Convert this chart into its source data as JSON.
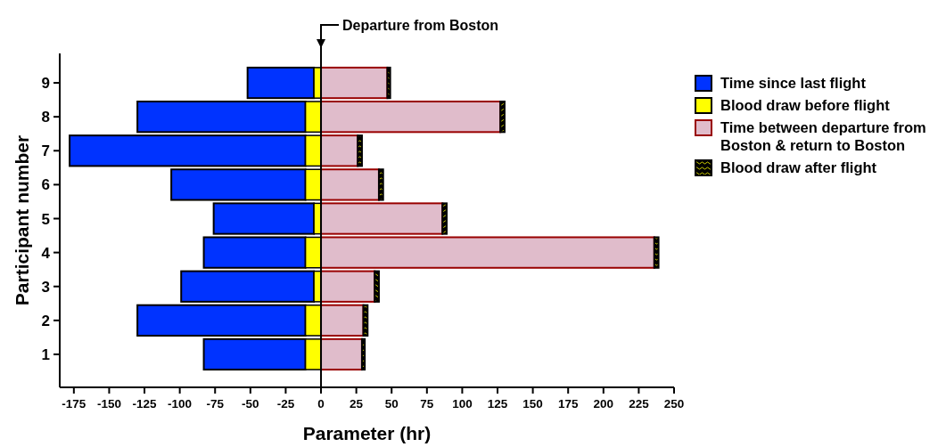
{
  "chart_data": {
    "type": "bar",
    "orientation": "horizontal",
    "xlabel": "Parameter (hr)",
    "ylabel": "Participant number",
    "categories": [
      "9",
      "8",
      "7",
      "6",
      "5",
      "4",
      "3",
      "2",
      "1"
    ],
    "series": [
      {
        "name": "Time since last flight",
        "color": "#0033ff",
        "base": [
          -52,
          -130,
          -178,
          -106,
          -76,
          -83,
          -99,
          -130,
          -83
        ],
        "values": [
          47,
          119,
          167,
          95,
          71,
          72,
          94,
          119,
          72
        ]
      },
      {
        "name": "Blood draw before flight",
        "color": "#ffff00",
        "base": [
          -5,
          -11,
          -11,
          -11,
          -5,
          -11,
          -5,
          -11,
          -11
        ],
        "values": [
          5,
          11,
          11,
          11,
          5,
          11,
          5,
          11,
          11
        ]
      },
      {
        "name": "Time between departure from Boston & return to Boston",
        "color": "#e0bccb",
        "base": [
          0,
          0,
          0,
          0,
          0,
          0,
          0,
          0,
          0
        ],
        "values": [
          47,
          127,
          26,
          41,
          86,
          236,
          38,
          30,
          29
        ]
      },
      {
        "name": "Blood draw after flight",
        "color": "#000000",
        "base": [
          47,
          127,
          26,
          41,
          86,
          236,
          38,
          30,
          29
        ],
        "values": [
          2,
          3,
          3,
          3,
          3,
          3,
          3,
          3,
          2
        ]
      }
    ],
    "xlim": [
      -185,
      250
    ],
    "xticks": [
      -175,
      -150,
      -125,
      -100,
      -75,
      -50,
      -25,
      0,
      25,
      50,
      75,
      100,
      125,
      150,
      175,
      200,
      225,
      250
    ],
    "ref_lines": [
      {
        "axis": "x",
        "value": 0,
        "label": "Departure from Boston"
      }
    ],
    "legend": "right",
    "grid": false
  }
}
